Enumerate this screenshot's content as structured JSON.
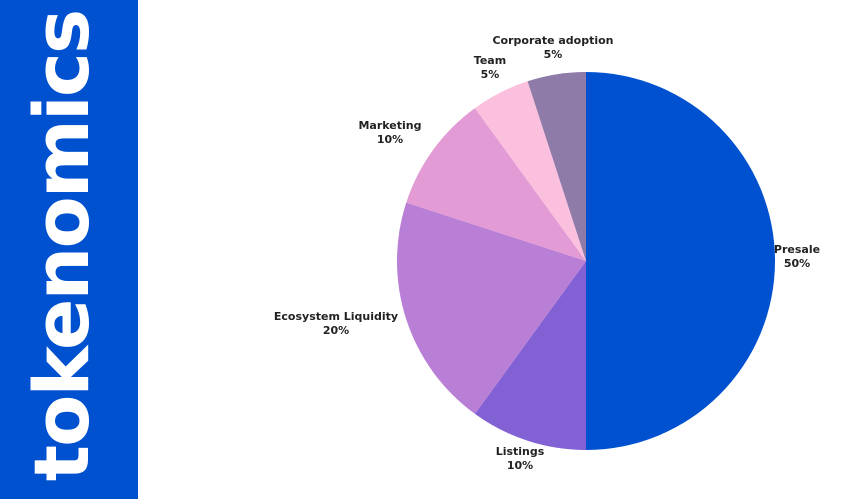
{
  "sidebar": {
    "title": "tokenomics"
  },
  "chart_data": {
    "type": "pie",
    "title": "tokenomics",
    "start": "top, clockwise",
    "slices": [
      {
        "label": "Presale",
        "value": 50,
        "display": "50%",
        "color": "#0051cf"
      },
      {
        "label": "Listings",
        "value": 10,
        "display": "10%",
        "color": "#8161d3"
      },
      {
        "label": "Ecosystem Liquidity",
        "value": 20,
        "display": "20%",
        "color": "#b97ed6"
      },
      {
        "label": "Marketing",
        "value": 10,
        "display": "10%",
        "color": "#e39bd5"
      },
      {
        "label": "Team",
        "value": 5,
        "display": "5%",
        "color": "#fcc0df"
      },
      {
        "label": "Corporate adoption",
        "value": 5,
        "display": "5%",
        "color": "#8f7ba8"
      }
    ]
  }
}
